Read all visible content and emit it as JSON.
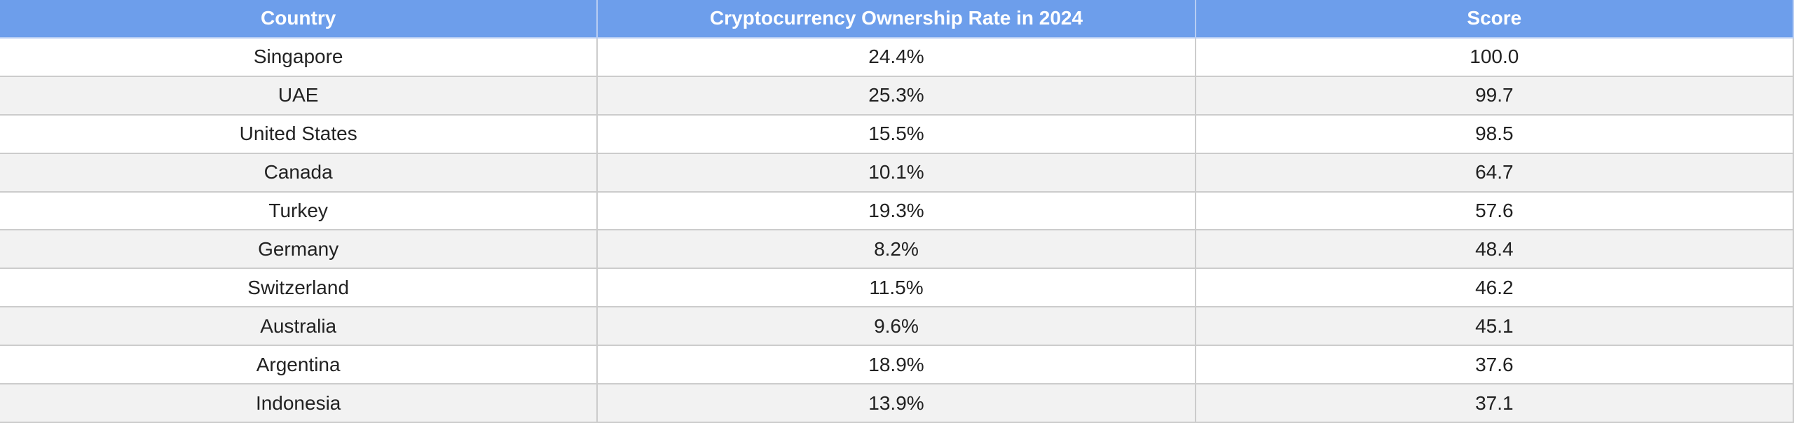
{
  "table": {
    "columns": [
      "Country",
      "Cryptocurrency Ownership Rate in 2024",
      "Score"
    ],
    "rows": [
      [
        "Singapore",
        "24.4%",
        "100.0"
      ],
      [
        "UAE",
        "25.3%",
        "99.7"
      ],
      [
        "United States",
        "15.5%",
        "98.5"
      ],
      [
        "Canada",
        "10.1%",
        "64.7"
      ],
      [
        "Turkey",
        "19.3%",
        "57.6"
      ],
      [
        "Germany",
        "8.2%",
        "48.4"
      ],
      [
        "Switzerland",
        "11.5%",
        "46.2"
      ],
      [
        "Australia",
        "9.6%",
        "45.1"
      ],
      [
        "Argentina",
        "18.9%",
        "37.6"
      ],
      [
        "Indonesia",
        "13.9%",
        "37.1"
      ]
    ]
  }
}
